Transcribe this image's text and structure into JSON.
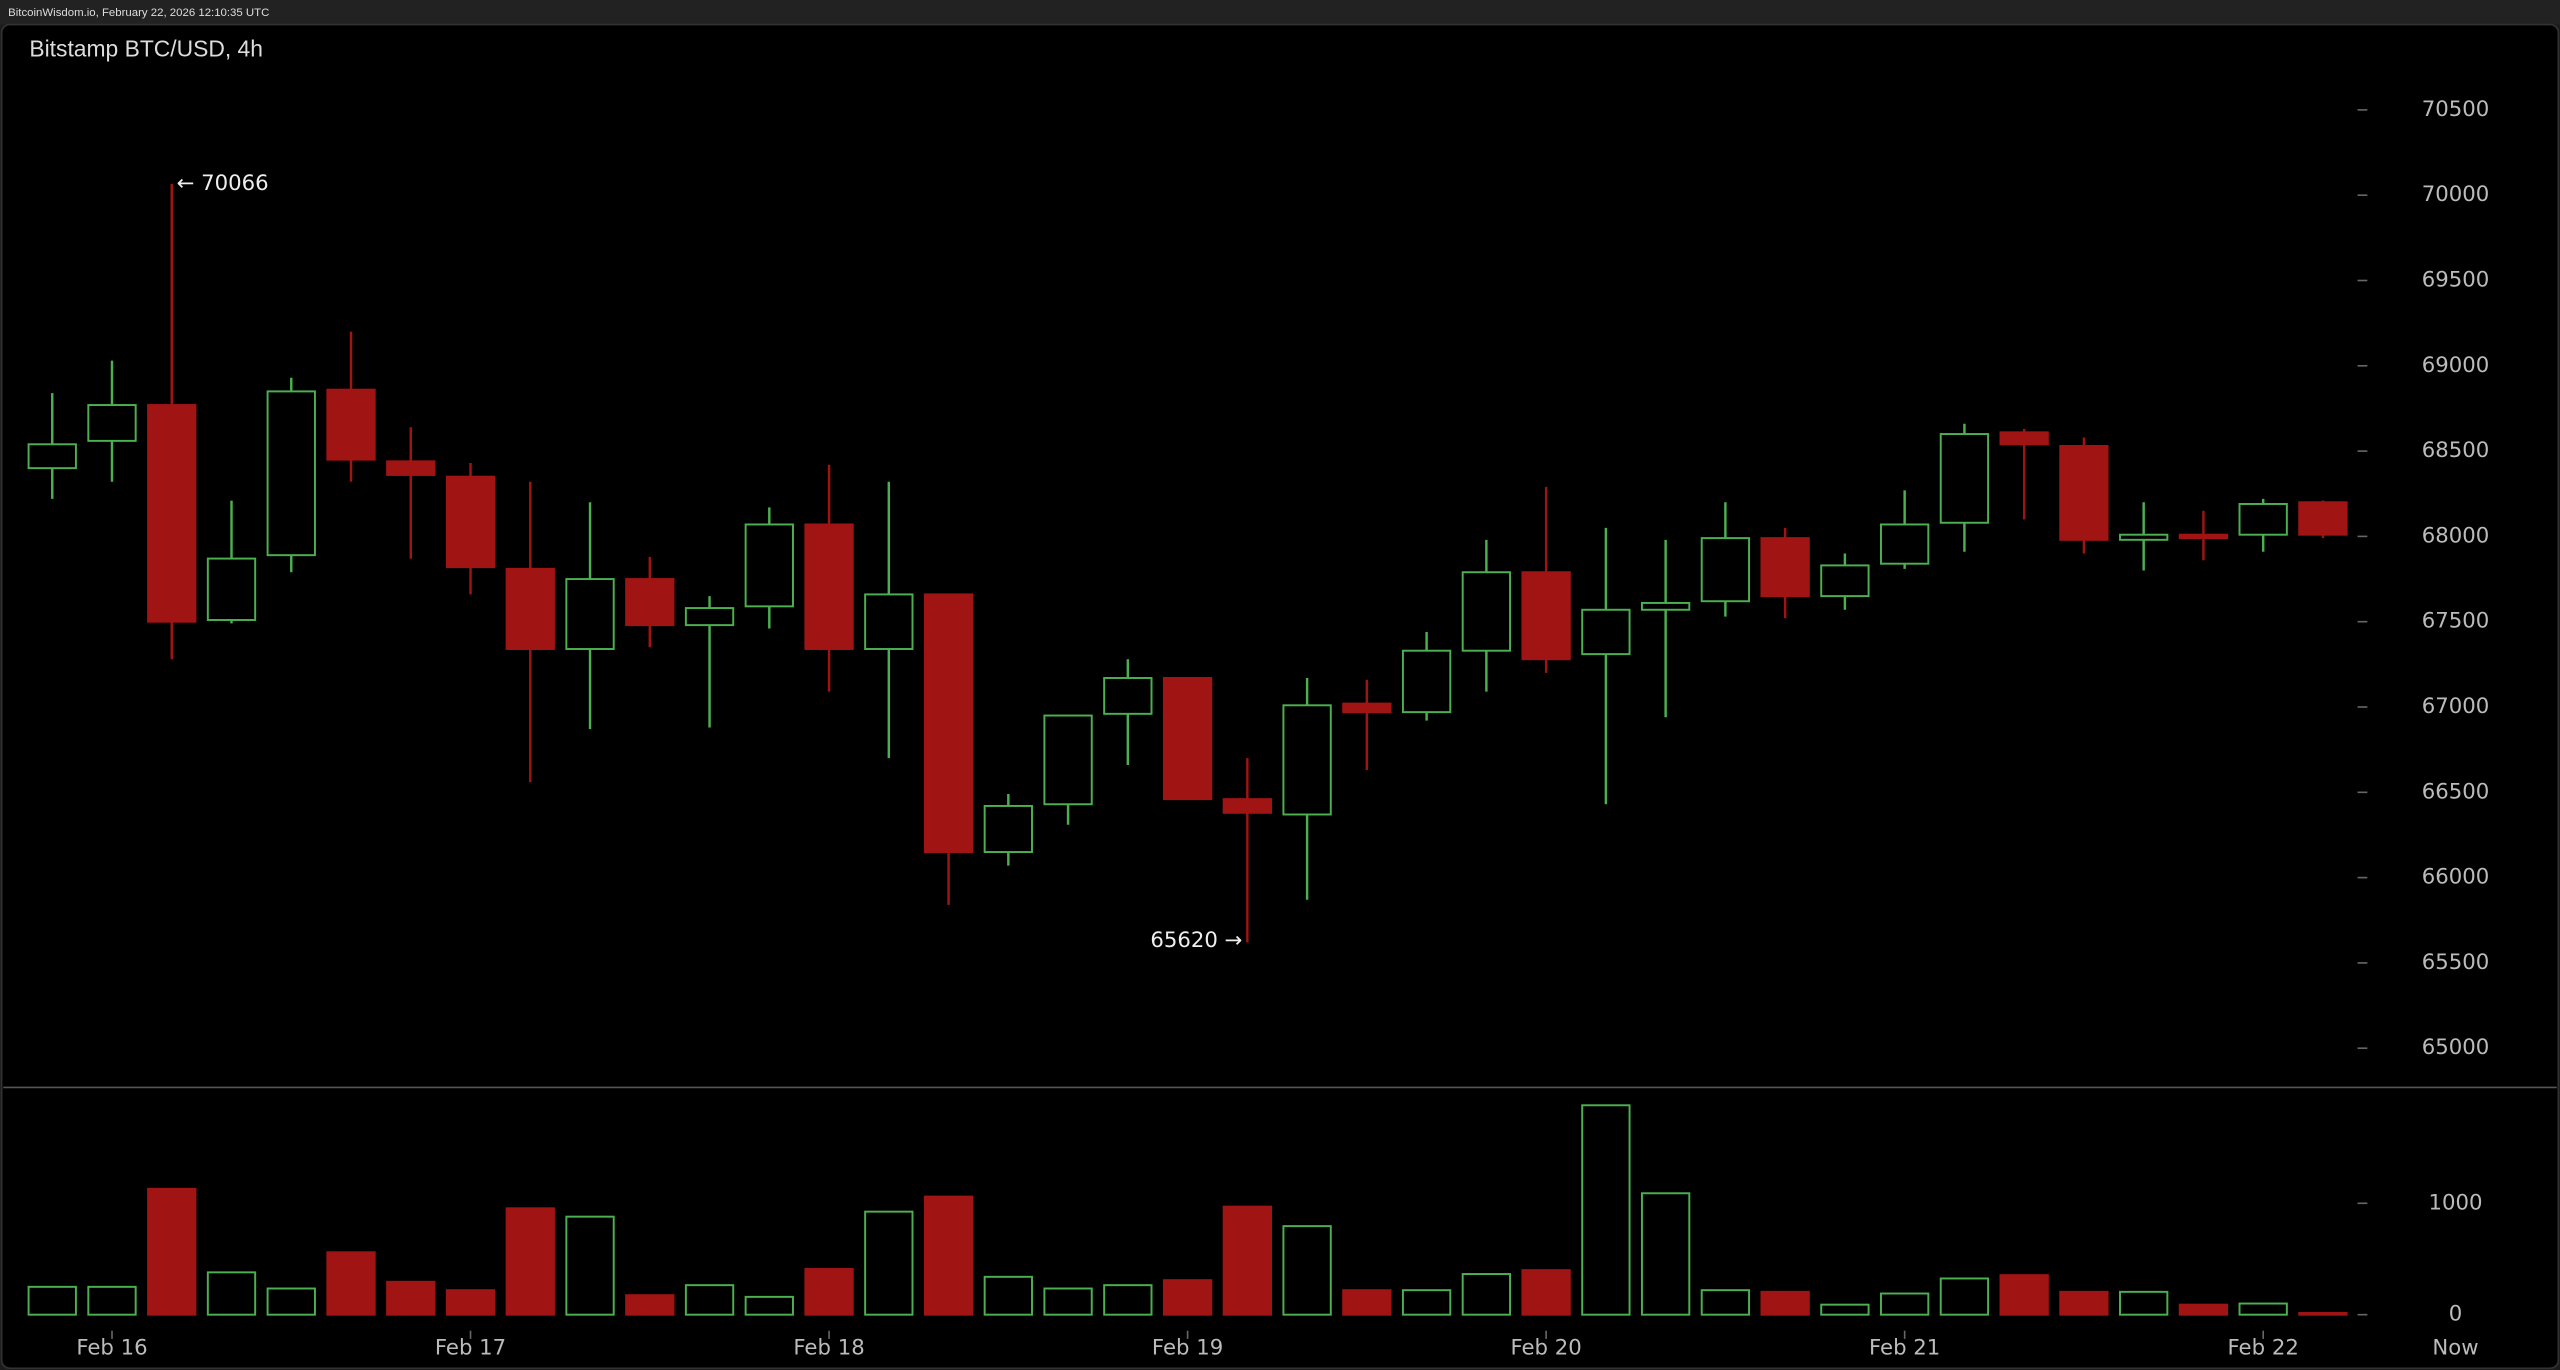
{
  "header": "BitcoinWisdom.io, February 22, 2026 12:10:35 UTC",
  "chart_data": {
    "type": "candlestick",
    "title": "Bitstamp BTC/USD, 4h",
    "categories": [
      null,
      "Feb 16",
      null,
      null,
      null,
      null,
      null,
      "Feb 17",
      null,
      null,
      null,
      null,
      null,
      "Feb 18",
      null,
      null,
      null,
      null,
      null,
      "Feb 19",
      null,
      null,
      null,
      null,
      null,
      "Feb 20",
      null,
      null,
      null,
      null,
      null,
      "Feb 21",
      null,
      null,
      null,
      null,
      null,
      "Feb 22",
      null
    ],
    "end_label": "Now",
    "open": [
      68400,
      68560,
      68770,
      67510,
      67890,
      68860,
      68440,
      68350,
      67810,
      67340,
      67750,
      67480,
      67590,
      68070,
      67340,
      67660,
      66150,
      66430,
      66960,
      67170,
      66460,
      66370,
      67020,
      66970,
      67330,
      67790,
      67310,
      67570,
      67620,
      67990,
      67650,
      67840,
      68080,
      68610,
      68530,
      67980,
      68010,
      68010,
      68200
    ],
    "high": [
      68840,
      69030,
      70066,
      68210,
      68930,
      69200,
      68640,
      68430,
      68320,
      68200,
      67880,
      67650,
      68170,
      68420,
      68320,
      67660,
      66490,
      66950,
      67280,
      67170,
      66700,
      67170,
      67160,
      67440,
      67980,
      68290,
      68050,
      67980,
      68200,
      68050,
      67900,
      68270,
      68660,
      68630,
      68580,
      68200,
      68150,
      68220,
      68210
    ],
    "low": [
      68220,
      68320,
      67280,
      67490,
      67790,
      68320,
      67870,
      67660,
      66560,
      66870,
      67350,
      66880,
      67460,
      67090,
      66700,
      65840,
      66070,
      66310,
      66660,
      66460,
      65620,
      65870,
      66630,
      66920,
      67090,
      67200,
      66430,
      66940,
      67530,
      67520,
      67570,
      67810,
      67910,
      68100,
      67900,
      67800,
      67860,
      67910,
      67990
    ],
    "close": [
      68540,
      68770,
      67500,
      67870,
      68850,
      68450,
      68360,
      67820,
      67340,
      67750,
      67480,
      67580,
      68070,
      67340,
      67660,
      66150,
      66420,
      66950,
      67170,
      66460,
      66380,
      67010,
      66970,
      67330,
      67790,
      67280,
      67570,
      67610,
      67990,
      67650,
      67830,
      68070,
      68600,
      68540,
      67980,
      68010,
      67990,
      68190,
      68010
    ],
    "volume": [
      250,
      250,
      1130,
      380,
      235,
      560,
      295,
      220,
      955,
      880,
      175,
      265,
      160,
      410,
      925,
      1060,
      340,
      235,
      265,
      310,
      970,
      795,
      220,
      220,
      365,
      400,
      1880,
      1090,
      220,
      205,
      90,
      190,
      325,
      355,
      205,
      205,
      90,
      100,
      15
    ],
    "annotations": [
      "← 70066",
      "65620 →"
    ],
    "up_color": "#4caf50",
    "down_color": "#a01414",
    "ylim": [
      64770,
      71000
    ],
    "yticks": [
      65000,
      65500,
      66000,
      66500,
      67000,
      67500,
      68000,
      68500,
      69000,
      69500,
      70000,
      70500
    ],
    "y2lim": [
      -100,
      2040
    ],
    "y2ticks": [
      0,
      1000
    ]
  }
}
